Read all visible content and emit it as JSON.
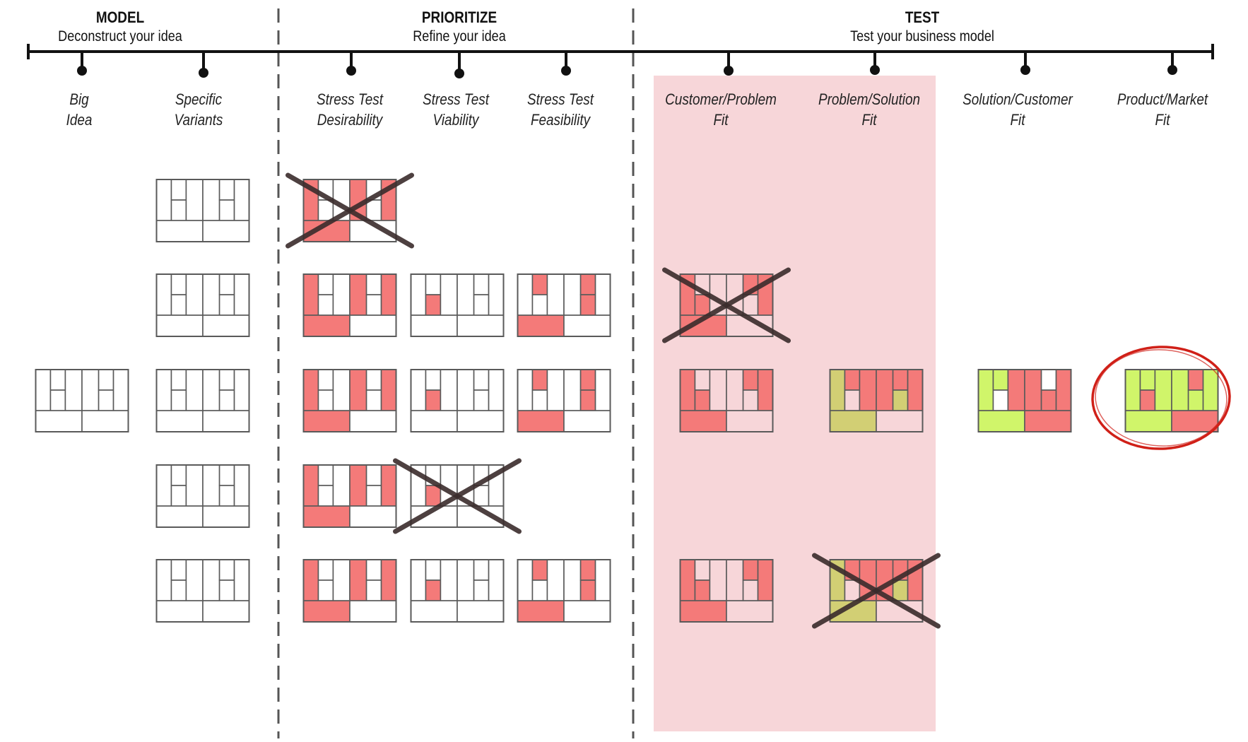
{
  "phases": [
    {
      "title": "MODEL",
      "subtitle": "Deconstruct your idea"
    },
    {
      "title": "PRIORITIZE",
      "subtitle": "Refine your idea"
    },
    {
      "title": "TEST",
      "subtitle": "Test your business model"
    }
  ],
  "steps": [
    {
      "line1": "Big",
      "line2": "Idea"
    },
    {
      "line1": "Specific",
      "line2": "Variants"
    },
    {
      "line1": "Stress Test",
      "line2": "Desirability"
    },
    {
      "line1": "Stress Test",
      "line2": "Viability"
    },
    {
      "line1": "Stress Test",
      "line2": "Feasibility"
    },
    {
      "line1": "Customer/Problem",
      "line2": "Fit"
    },
    {
      "line1": "Problem/Solution",
      "line2": "Fit"
    },
    {
      "line1": "Solution/Customer",
      "line2": "Fit"
    },
    {
      "line1": "Product/Market",
      "line2": "Fit"
    }
  ],
  "colors": {
    "untested": "#ffffff",
    "risk": "#f47a79",
    "validated": "#d0f56a",
    "olive": "#d2cf74",
    "highlight_band": "#f7d6d9",
    "grid_line": "#5a5a5a",
    "cross": "#3a2c2c",
    "winner_circle": "#d02018"
  },
  "canvases": [
    {
      "step": 0,
      "row": 3,
      "fill": [
        "w",
        "w",
        "w",
        "w",
        "w",
        "w",
        "w",
        "w",
        "w",
        "w",
        "w"
      ],
      "crossed": false
    },
    {
      "step": 1,
      "row": 1,
      "fill": [
        "w",
        "w",
        "w",
        "w",
        "w",
        "w",
        "w",
        "w",
        "w",
        "w",
        "w"
      ],
      "crossed": false
    },
    {
      "step": 1,
      "row": 2,
      "fill": [
        "w",
        "w",
        "w",
        "w",
        "w",
        "w",
        "w",
        "w",
        "w",
        "w",
        "w"
      ],
      "crossed": false
    },
    {
      "step": 1,
      "row": 3,
      "fill": [
        "w",
        "w",
        "w",
        "w",
        "w",
        "w",
        "w",
        "w",
        "w",
        "w",
        "w"
      ],
      "crossed": false
    },
    {
      "step": 1,
      "row": 4,
      "fill": [
        "w",
        "w",
        "w",
        "w",
        "w",
        "w",
        "w",
        "w",
        "w",
        "w",
        "w"
      ],
      "crossed": false
    },
    {
      "step": 1,
      "row": 5,
      "fill": [
        "w",
        "w",
        "w",
        "w",
        "w",
        "w",
        "w",
        "w",
        "w",
        "w",
        "w"
      ],
      "crossed": false
    },
    {
      "step": 2,
      "row": 1,
      "fill": [
        "r",
        "w",
        "w",
        "w",
        "r",
        "w",
        "w",
        "r",
        "r",
        "w",
        "w"
      ],
      "crossed": true
    },
    {
      "step": 2,
      "row": 2,
      "fill": [
        "r",
        "w",
        "w",
        "w",
        "r",
        "w",
        "w",
        "r",
        "r",
        "w",
        "w"
      ],
      "crossed": false
    },
    {
      "step": 2,
      "row": 3,
      "fill": [
        "r",
        "w",
        "w",
        "w",
        "r",
        "w",
        "w",
        "r",
        "r",
        "w",
        "w"
      ],
      "crossed": false
    },
    {
      "step": 2,
      "row": 4,
      "fill": [
        "r",
        "w",
        "w",
        "w",
        "r",
        "w",
        "w",
        "r",
        "r",
        "w",
        "w"
      ],
      "crossed": false
    },
    {
      "step": 2,
      "row": 5,
      "fill": [
        "r",
        "w",
        "w",
        "w",
        "r",
        "w",
        "w",
        "r",
        "r",
        "w",
        "w"
      ],
      "crossed": false
    },
    {
      "step": 3,
      "row": 2,
      "fill": [
        "w",
        "w",
        "r",
        "w",
        "w",
        "w",
        "w",
        "w",
        "w",
        "w",
        "r"
      ],
      "crossed": false
    },
    {
      "step": 3,
      "row": 3,
      "fill": [
        "w",
        "w",
        "r",
        "w",
        "w",
        "w",
        "w",
        "w",
        "w",
        "w",
        "r"
      ],
      "crossed": false
    },
    {
      "step": 3,
      "row": 4,
      "fill": [
        "w",
        "w",
        "r",
        "w",
        "w",
        "w",
        "w",
        "w",
        "w",
        "w",
        "r"
      ],
      "crossed": true
    },
    {
      "step": 3,
      "row": 5,
      "fill": [
        "w",
        "w",
        "r",
        "w",
        "w",
        "w",
        "w",
        "w",
        "w",
        "w",
        "r"
      ],
      "crossed": false
    },
    {
      "step": 4,
      "row": 2,
      "fill": [
        "w",
        "r",
        "w",
        "w",
        "w",
        "r",
        "r",
        "w",
        "r",
        "w",
        "w"
      ],
      "crossed": false
    },
    {
      "step": 4,
      "row": 3,
      "fill": [
        "w",
        "r",
        "w",
        "w",
        "w",
        "r",
        "r",
        "w",
        "r",
        "w",
        "w"
      ],
      "crossed": false
    },
    {
      "step": 4,
      "row": 5,
      "fill": [
        "w",
        "r",
        "w",
        "w",
        "w",
        "r",
        "r",
        "w",
        "r",
        "w",
        "w"
      ],
      "crossed": false
    },
    {
      "step": 5,
      "row": 2,
      "fill": [
        "r",
        "p",
        "r",
        "p",
        "p",
        "r",
        "p",
        "r",
        "r",
        "p",
        "p"
      ],
      "crossed": true
    },
    {
      "step": 5,
      "row": 3,
      "fill": [
        "r",
        "p",
        "r",
        "p",
        "p",
        "r",
        "p",
        "r",
        "r",
        "p",
        "p"
      ],
      "crossed": false
    },
    {
      "step": 5,
      "row": 5,
      "fill": [
        "r",
        "p",
        "r",
        "p",
        "p",
        "r",
        "p",
        "r",
        "r",
        "p",
        "p"
      ],
      "crossed": false
    },
    {
      "step": 6,
      "row": 3,
      "fill": [
        "o",
        "r",
        "p",
        "r",
        "r",
        "r",
        "o",
        "r",
        "o",
        "p",
        "r"
      ],
      "crossed": false
    },
    {
      "step": 6,
      "row": 5,
      "fill": [
        "o",
        "r",
        "p",
        "r",
        "r",
        "r",
        "o",
        "r",
        "o",
        "p",
        "r"
      ],
      "crossed": true
    },
    {
      "step": 7,
      "row": 3,
      "fill": [
        "g",
        "g",
        "w",
        "r",
        "r",
        "w",
        "r",
        "r",
        "g",
        "r",
        "g"
      ],
      "crossed": false
    },
    {
      "step": 8,
      "row": 3,
      "fill": [
        "g",
        "g",
        "r",
        "g",
        "g",
        "r",
        "g",
        "g",
        "g",
        "r",
        "g"
      ],
      "crossed": false,
      "winner": true
    }
  ]
}
